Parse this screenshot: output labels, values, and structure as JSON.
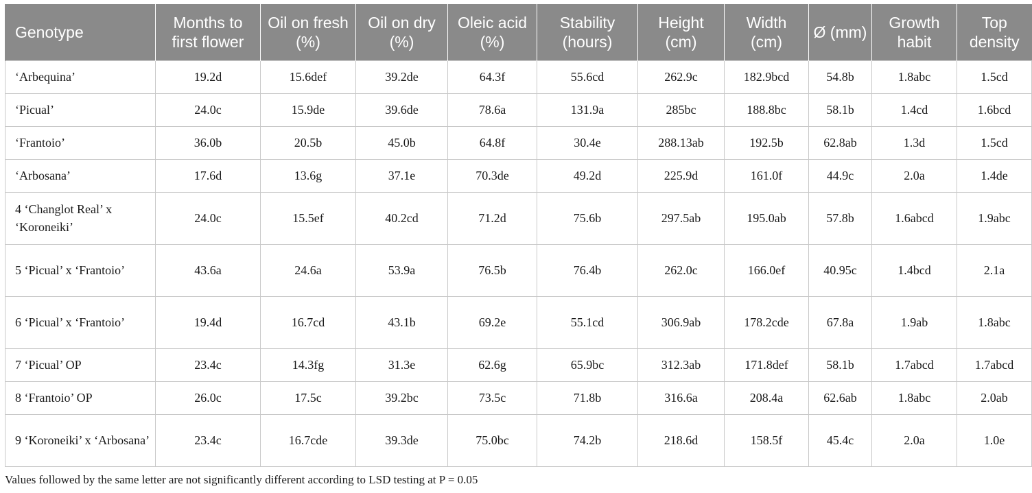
{
  "table": {
    "headers": [
      "Genotype",
      "Months to first flower",
      "Oil on fresh (%)",
      "Oil on dry (%)",
      "Oleic acid (%)",
      "Stability (hours)",
      "Height (cm)",
      "Width (cm)",
      "Ø (mm)",
      "Growth habit",
      "Top density"
    ],
    "rows": [
      [
        "‘Arbequina’",
        "19.2d",
        "15.6def",
        "39.2de",
        "64.3f",
        "55.6cd",
        "262.9c",
        "182.9bcd",
        "54.8b",
        "1.8abc",
        "1.5cd"
      ],
      [
        "‘Picual’",
        "24.0c",
        "15.9de",
        "39.6de",
        "78.6a",
        "131.9a",
        "285bc",
        "188.8bc",
        "58.1b",
        "1.4cd",
        "1.6bcd"
      ],
      [
        "‘Frantoio’",
        "36.0b",
        "20.5b",
        "45.0b",
        "64.8f",
        "30.4e",
        "288.13ab",
        "192.5b",
        "62.8ab",
        "1.3d",
        "1.5cd"
      ],
      [
        "‘Arbosana’",
        "17.6d",
        "13.6g",
        "37.1e",
        "70.3de",
        "49.2d",
        "225.9d",
        "161.0f",
        "44.9c",
        "2.0a",
        "1.4de"
      ],
      [
        "4 ‘Changlot Real’ x ‘Koroneiki’",
        "24.0c",
        "15.5ef",
        "40.2cd",
        "71.2d",
        "75.6b",
        "297.5ab",
        "195.0ab",
        "57.8b",
        "1.6abcd",
        "1.9abc"
      ],
      [
        "5 ‘Picual’ x ‘Frantoio’",
        "43.6a",
        "24.6a",
        "53.9a",
        "76.5b",
        "76.4b",
        "262.0c",
        "166.0ef",
        "40.95c",
        "1.4bcd",
        "2.1a"
      ],
      [
        "6 ‘Picual’ x ‘Frantoio’",
        "19.4d",
        "16.7cd",
        "43.1b",
        "69.2e",
        "55.1cd",
        "306.9ab",
        "178.2cde",
        "67.8a",
        "1.9ab",
        "1.8abc"
      ],
      [
        "7 ‘Picual’ OP",
        "23.4c",
        "14.3fg",
        "31.3e",
        "62.6g",
        "65.9bc",
        "312.3ab",
        "171.8def",
        "58.1b",
        "1.7abcd",
        "1.7abcd"
      ],
      [
        "8 ‘Frantoio’ OP",
        "26.0c",
        "17.5c",
        "39.2bc",
        "73.5c",
        "71.8b",
        "316.6a",
        "208.4a",
        "62.6ab",
        "1.8abc",
        "2.0ab"
      ],
      [
        "9 ‘Koroneiki’ x ‘Arbosana’",
        "23.4c",
        "16.7cde",
        "39.3de",
        "75.0bc",
        "74.2b",
        "218.6d",
        "158.5f",
        "45.4c",
        "2.0a",
        "1.0e"
      ]
    ]
  },
  "footnote": "Values followed by the same letter are not significantly different according to LSD testing at P = 0.05"
}
